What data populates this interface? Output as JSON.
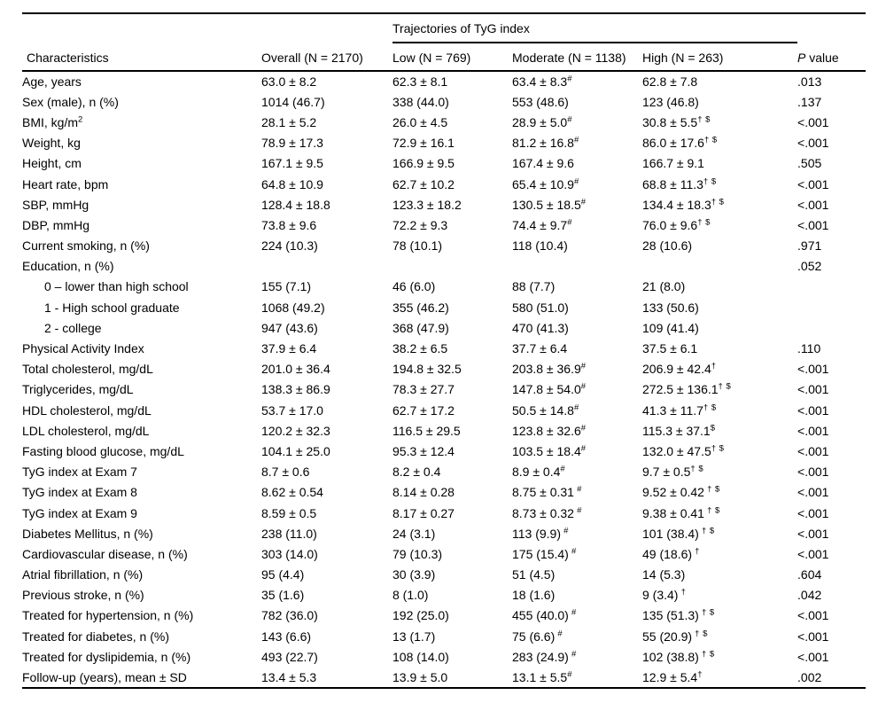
{
  "table": {
    "spanner": "Trajectories of TyG index",
    "columns": {
      "characteristics": "Characteristics",
      "overall": "Overall (N = 2170)",
      "low": "Low (N = 769)",
      "moderate": "Moderate (N = 1138)",
      "high": "High (N = 263)",
      "p_italic": "P",
      "p_rest": " value"
    },
    "rows": [
      {
        "label": "Age, years",
        "overall": "63.0 ± 8.2",
        "low": "62.3 ± 8.1",
        "moderate": "63.4 ± 8.3",
        "moderate_sup": "#",
        "high": "62.8 ± 7.8",
        "p": ".013"
      },
      {
        "label": "Sex (male), n (%)",
        "overall": "1014 (46.7)",
        "low": "338 (44.0)",
        "moderate": "553 (48.6)",
        "high": "123 (46.8)",
        "p": ".137"
      },
      {
        "label": "BMI, kg/m",
        "label_sup": "2",
        "overall": "28.1 ± 5.2",
        "low": "26.0 ± 4.5",
        "moderate": "28.9 ± 5.0",
        "moderate_sup": "#",
        "high": "30.8 ± 5.5",
        "high_sup": "† $",
        "p": "<.001"
      },
      {
        "label": "Weight, kg",
        "overall": "78.9 ± 17.3",
        "low": "72.9 ± 16.1",
        "moderate": "81.2 ± 16.8",
        "moderate_sup": "#",
        "high": "86.0 ± 17.6",
        "high_sup": "† $",
        "p": "<.001"
      },
      {
        "label": "Height, cm",
        "overall": "167.1 ± 9.5",
        "low": "166.9 ± 9.5",
        "moderate": "167.4 ± 9.6",
        "high": "166.7 ± 9.1",
        "p": ".505"
      },
      {
        "label": "Heart rate, bpm",
        "overall": "64.8 ± 10.9",
        "low": "62.7 ± 10.2",
        "moderate": "65.4 ± 10.9",
        "moderate_sup": "#",
        "high": "68.8 ± 11.3",
        "high_sup": "† $",
        "p": "<.001"
      },
      {
        "label": "SBP, mmHg",
        "overall": "128.4 ± 18.8",
        "low": "123.3 ± 18.2",
        "moderate": "130.5 ± 18.5",
        "moderate_sup": "#",
        "high": "134.4 ± 18.3",
        "high_sup": "† $",
        "p": "<.001"
      },
      {
        "label": "DBP, mmHg",
        "overall": "73.8 ± 9.6",
        "low": "72.2 ± 9.3",
        "moderate": "74.4 ± 9.7",
        "moderate_sup": "#",
        "high": "76.0 ± 9.6",
        "high_sup": "† $",
        "p": "<.001"
      },
      {
        "label": "Current smoking, n (%)",
        "overall": "224 (10.3)",
        "low": "78 (10.1)",
        "moderate": "118 (10.4)",
        "high": "28 (10.6)",
        "p": ".971"
      },
      {
        "label": "Education, n (%)",
        "p": ".052"
      },
      {
        "label": "0 – lower than high school",
        "indent": true,
        "overall": "155 (7.1)",
        "low": "46 (6.0)",
        "moderate": "88 (7.7)",
        "high": "21 (8.0)"
      },
      {
        "label": "1 - High school graduate",
        "indent": true,
        "overall": "1068 (49.2)",
        "low": "355 (46.2)",
        "moderate": "580 (51.0)",
        "high": "133 (50.6)"
      },
      {
        "label": "2 - college",
        "indent": true,
        "overall": "947 (43.6)",
        "low": "368 (47.9)",
        "moderate": "470 (41.3)",
        "high": "109 (41.4)"
      },
      {
        "label": "Physical Activity Index",
        "overall": "37.9 ± 6.4",
        "low": "38.2 ± 6.5",
        "moderate": "37.7 ± 6.4",
        "high": "37.5 ± 6.1",
        "p": ".110"
      },
      {
        "label": "Total cholesterol, mg/dL",
        "overall": "201.0 ± 36.4",
        "low": "194.8 ± 32.5",
        "moderate": "203.8 ± 36.9",
        "moderate_sup": "#",
        "high": "206.9 ± 42.4",
        "high_sup": "†",
        "p": "<.001"
      },
      {
        "label": "Triglycerides, mg/dL",
        "overall": "138.3 ± 86.9",
        "low": "78.3 ± 27.7",
        "moderate": "147.8 ± 54.0",
        "moderate_sup": "#",
        "high": "272.5 ± 136.1",
        "high_sup": "† $",
        "p": "<.001"
      },
      {
        "label": "HDL cholesterol, mg/dL",
        "overall": "53.7 ± 17.0",
        "low": "62.7 ± 17.2",
        "moderate": "50.5 ± 14.8",
        "moderate_sup": "#",
        "high": "41.3 ± 11.7",
        "high_sup": "† $",
        "p": "<.001"
      },
      {
        "label": "LDL cholesterol, mg/dL",
        "overall": "120.2 ± 32.3",
        "low": "116.5 ± 29.5",
        "moderate": "123.8 ± 32.6",
        "moderate_sup": "#",
        "high": "115.3 ± 37.1",
        "high_sup": "$",
        "p": "<.001"
      },
      {
        "label": "Fasting blood glucose, mg/dL",
        "overall": "104.1 ± 25.0",
        "low": "95.3 ± 12.4",
        "moderate": "103.5 ± 18.4",
        "moderate_sup": "#",
        "high": "132.0 ± 47.5",
        "high_sup": "† $",
        "p": "<.001"
      },
      {
        "label": "TyG index at Exam 7",
        "overall": "8.7 ± 0.6",
        "low": "8.2 ± 0.4",
        "moderate": "8.9 ± 0.4",
        "moderate_sup": "#",
        "high": "9.7 ± 0.5",
        "high_sup": "† $",
        "p": "<.001"
      },
      {
        "label": "TyG index at Exam 8",
        "overall": "8.62 ± 0.54",
        "low": "8.14 ± 0.28",
        "moderate": "8.75 ± 0.31",
        "moderate_sup": " #",
        "high": "9.52 ± 0.42",
        "high_sup": " † $",
        "p": "<.001"
      },
      {
        "label": "TyG index at Exam 9",
        "overall": "8.59 ± 0.5",
        "low": "8.17 ± 0.27",
        "moderate": "8.73 ± 0.32",
        "moderate_sup": " #",
        "high": "9.38 ± 0.41",
        "high_sup": " † $",
        "p": "<.001"
      },
      {
        "label": "Diabetes Mellitus, n (%)",
        "overall": "238 (11.0)",
        "low": "24 (3.1)",
        "moderate": "113 (9.9)",
        "moderate_sup": " #",
        "high": "101 (38.4)",
        "high_sup": " † $",
        "p": "<.001"
      },
      {
        "label": "Cardiovascular disease, n (%)",
        "overall": "303 (14.0)",
        "low": "79 (10.3)",
        "moderate": "175 (15.4)",
        "moderate_sup": " #",
        "high": "49 (18.6)",
        "high_sup": " †",
        "p": "<.001"
      },
      {
        "label": "Atrial fibrillation, n (%)",
        "overall": "95 (4.4)",
        "low": "30 (3.9)",
        "moderate": "51 (4.5)",
        "high": "14 (5.3)",
        "p": ".604"
      },
      {
        "label": "Previous stroke, n (%)",
        "overall": "35 (1.6)",
        "low": "8 (1.0)",
        "moderate": "18 (1.6)",
        "high": "9 (3.4)",
        "high_sup": " †",
        "p": ".042"
      },
      {
        "label": "Treated for hypertension, n (%)",
        "overall": "782 (36.0)",
        "low": "192 (25.0)",
        "moderate": "455 (40.0)",
        "moderate_sup": " #",
        "high": "135 (51.3)",
        "high_sup": " † $",
        "p": "<.001"
      },
      {
        "label": "Treated for diabetes, n (%)",
        "overall": "143 (6.6)",
        "low": "13 (1.7)",
        "moderate": "75 (6.6)",
        "moderate_sup": " #",
        "high": "55 (20.9)",
        "high_sup": " † $",
        "p": "<.001"
      },
      {
        "label": "Treated for dyslipidemia, n (%)",
        "overall": "493 (22.7)",
        "low": "108 (14.0)",
        "moderate": "283 (24.9)",
        "moderate_sup": " #",
        "high": "102 (38.8)",
        "high_sup": " † $",
        "p": "<.001"
      },
      {
        "label": "Follow-up (years), mean ± SD",
        "overall": "13.4 ± 5.3",
        "low": "13.9 ± 5.0",
        "moderate": "13.1 ± 5.5",
        "moderate_sup": "#",
        "high": "12.9 ± 5.4",
        "high_sup": "†",
        "p": ".002"
      }
    ]
  }
}
